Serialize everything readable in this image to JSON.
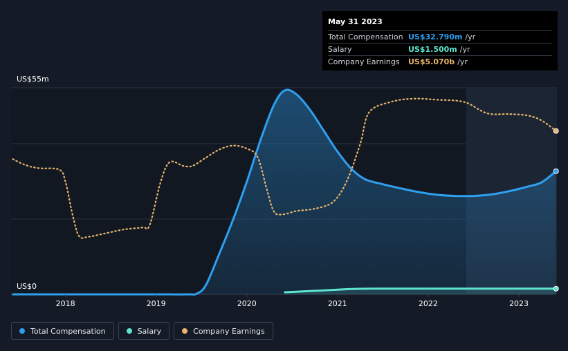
{
  "tooltip": {
    "date": "May 31 2023",
    "rows": [
      {
        "label": "Total Compensation",
        "value": "US$32.790m",
        "unit": "/yr",
        "color": "#2f9ff0"
      },
      {
        "label": "Salary",
        "value": "US$1.500m",
        "unit": "/yr",
        "color": "#5ee4cf"
      },
      {
        "label": "Company Earnings",
        "value": "US$5.070b",
        "unit": "/yr",
        "color": "#e8b56b"
      }
    ]
  },
  "legend": [
    {
      "label": "Total Compensation",
      "color": "#2f9ff0",
      "icon": "dot-icon"
    },
    {
      "label": "Salary",
      "color": "#5ee4cf",
      "icon": "dot-icon"
    },
    {
      "label": "Company Earnings",
      "color": "#e8b56b",
      "icon": "dot-icon"
    }
  ],
  "chart_data": {
    "type": "line",
    "title": "",
    "y_axis_labels": {
      "top": "US$55m",
      "bottom": "US$0"
    },
    "ylim": [
      0,
      55
    ],
    "xlim": [
      2017.4,
      2023.42
    ],
    "x_ticks": [
      "2018",
      "2019",
      "2020",
      "2021",
      "2022",
      "2023"
    ],
    "grid": true,
    "legend_position": "bottom-left",
    "series": [
      {
        "name": "Total Compensation",
        "color": "#2f9ff0",
        "style": "solid-area",
        "points": [
          [
            2017.42,
            0
          ],
          [
            2018.0,
            0
          ],
          [
            2018.5,
            0
          ],
          [
            2019.0,
            0
          ],
          [
            2019.35,
            0
          ],
          [
            2019.45,
            0.2
          ],
          [
            2019.55,
            2.5
          ],
          [
            2019.7,
            11
          ],
          [
            2019.85,
            20
          ],
          [
            2020.0,
            30
          ],
          [
            2020.15,
            41
          ],
          [
            2020.3,
            50.5
          ],
          [
            2020.42,
            54.3
          ],
          [
            2020.55,
            53.2
          ],
          [
            2020.7,
            49
          ],
          [
            2020.85,
            43.5
          ],
          [
            2021.0,
            38
          ],
          [
            2021.15,
            33.5
          ],
          [
            2021.3,
            30.7
          ],
          [
            2021.5,
            29.3
          ],
          [
            2021.7,
            28.2
          ],
          [
            2021.9,
            27.2
          ],
          [
            2022.1,
            26.5
          ],
          [
            2022.3,
            26.2
          ],
          [
            2022.5,
            26.2
          ],
          [
            2022.7,
            26.6
          ],
          [
            2022.9,
            27.5
          ],
          [
            2023.1,
            28.7
          ],
          [
            2023.25,
            29.8
          ],
          [
            2023.41,
            32.79
          ]
        ]
      },
      {
        "name": "Salary",
        "color": "#5ee4cf",
        "style": "solid-area",
        "points": [
          [
            2020.42,
            0.55
          ],
          [
            2020.6,
            0.75
          ],
          [
            2020.8,
            1.0
          ],
          [
            2021.0,
            1.25
          ],
          [
            2021.2,
            1.45
          ],
          [
            2021.4,
            1.5
          ],
          [
            2022.0,
            1.5
          ],
          [
            2022.5,
            1.5
          ],
          [
            2023.0,
            1.5
          ],
          [
            2023.41,
            1.5
          ]
        ]
      },
      {
        "name": "Company Earnings",
        "color": "#e8b56b",
        "style": "dotted",
        "points": [
          [
            2017.42,
            36
          ],
          [
            2017.55,
            34.5
          ],
          [
            2017.7,
            33.6
          ],
          [
            2017.93,
            33.2
          ],
          [
            2018.0,
            30
          ],
          [
            2018.08,
            21
          ],
          [
            2018.15,
            15.5
          ],
          [
            2018.25,
            15.3
          ],
          [
            2018.45,
            16.3
          ],
          [
            2018.65,
            17.3
          ],
          [
            2018.85,
            17.8
          ],
          [
            2018.93,
            18.5
          ],
          [
            2019.05,
            30
          ],
          [
            2019.15,
            35.2
          ],
          [
            2019.3,
            34.2
          ],
          [
            2019.4,
            34.2
          ],
          [
            2019.55,
            36.4
          ],
          [
            2019.7,
            38.6
          ],
          [
            2019.85,
            39.6
          ],
          [
            2020.0,
            38.8
          ],
          [
            2020.12,
            36.5
          ],
          [
            2020.22,
            28
          ],
          [
            2020.3,
            22
          ],
          [
            2020.4,
            21.3
          ],
          [
            2020.55,
            22.2
          ],
          [
            2020.75,
            22.8
          ],
          [
            2020.95,
            24.6
          ],
          [
            2021.1,
            30
          ],
          [
            2021.25,
            40
          ],
          [
            2021.35,
            48.5
          ],
          [
            2021.6,
            51.3
          ],
          [
            2021.85,
            52.1
          ],
          [
            2022.1,
            51.8
          ],
          [
            2022.4,
            51.2
          ],
          [
            2022.65,
            48.2
          ],
          [
            2022.9,
            48
          ],
          [
            2023.1,
            47.6
          ],
          [
            2023.25,
            46.3
          ],
          [
            2023.41,
            43.5
          ]
        ]
      }
    ],
    "highlight_region_from": 2022.42
  }
}
